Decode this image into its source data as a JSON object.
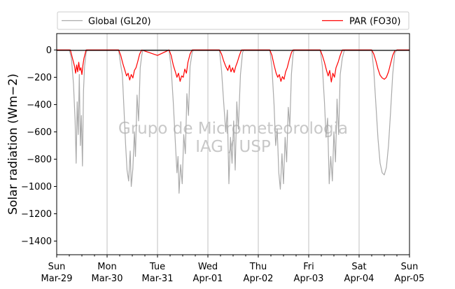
{
  "chart_data": {
    "type": "line",
    "title": "",
    "xlabel": "",
    "ylabel": "Solar radiation (Wm−2)",
    "ylim": [
      -1500,
      120
    ],
    "yticks": [
      0,
      -200,
      -400,
      -600,
      -800,
      -1000,
      -1200,
      -1400
    ],
    "xlim": [
      "2020-03-29",
      "2020-04-05"
    ],
    "xticks": [
      {
        "date": "2020-03-29",
        "day": "Sun",
        "label": "Mar-29"
      },
      {
        "date": "2020-03-30",
        "day": "Mon",
        "label": "Mar-30"
      },
      {
        "date": "2020-03-31",
        "day": "Tue",
        "label": "Mar-31"
      },
      {
        "date": "2020-04-01",
        "day": "Wed",
        "label": "Apr-01"
      },
      {
        "date": "2020-04-02",
        "day": "Thu",
        "label": "Apr-02"
      },
      {
        "date": "2020-04-03",
        "day": "Fri",
        "label": "Apr-03"
      },
      {
        "date": "2020-04-04",
        "day": "Sat",
        "label": "Apr-04"
      },
      {
        "date": "2020-04-05",
        "day": "Sun",
        "label": "Apr-05"
      }
    ],
    "grid": "vertical",
    "legend_position": "top",
    "watermark": [
      "Grupo de Micrometeorologia",
      "IAG / USP"
    ],
    "series": [
      {
        "name": "Global (GL20)",
        "color": "#aaaaaa",
        "points": [
          [
            "2020-03-29 00:00",
            0
          ],
          [
            "2020-03-29 06:00",
            0
          ],
          [
            "2020-03-29 07:00",
            -60
          ],
          [
            "2020-03-29 08:00",
            -250
          ],
          [
            "2020-03-29 08:45",
            -520
          ],
          [
            "2020-03-29 09:15",
            -830
          ],
          [
            "2020-03-29 09:45",
            -380
          ],
          [
            "2020-03-29 10:15",
            -620
          ],
          [
            "2020-03-29 10:45",
            -180
          ],
          [
            "2020-03-29 11:15",
            -700
          ],
          [
            "2020-03-29 11:45",
            -480
          ],
          [
            "2020-03-29 12:15",
            -850
          ],
          [
            "2020-03-29 12:45",
            -300
          ],
          [
            "2020-03-29 13:15",
            -120
          ],
          [
            "2020-03-29 14:00",
            -20
          ],
          [
            "2020-03-29 14:30",
            0
          ],
          [
            "2020-03-30 05:30",
            0
          ],
          [
            "2020-03-30 06:30",
            -110
          ],
          [
            "2020-03-30 07:15",
            -180
          ],
          [
            "2020-03-30 08:00",
            -420
          ],
          [
            "2020-03-30 08:45",
            -680
          ],
          [
            "2020-03-30 09:30",
            -880
          ],
          [
            "2020-03-30 10:15",
            -960
          ],
          [
            "2020-03-30 11:00",
            -740
          ],
          [
            "2020-03-30 11:30",
            -1000
          ],
          [
            "2020-03-30 12:15",
            -870
          ],
          [
            "2020-03-30 13:00",
            -600
          ],
          [
            "2020-03-30 13:30",
            -780
          ],
          [
            "2020-03-30 14:15",
            -330
          ],
          [
            "2020-03-30 15:00",
            -520
          ],
          [
            "2020-03-30 15:45",
            -130
          ],
          [
            "2020-03-30 16:30",
            -40
          ],
          [
            "2020-03-30 17:00",
            0
          ],
          [
            "2020-03-31 05:30",
            0
          ],
          [
            "2020-03-31 06:30",
            -130
          ],
          [
            "2020-03-31 07:30",
            -380
          ],
          [
            "2020-03-31 08:30",
            -680
          ],
          [
            "2020-03-31 09:15",
            -900
          ],
          [
            "2020-03-31 09:45",
            -780
          ],
          [
            "2020-03-31 10:15",
            -1050
          ],
          [
            "2020-03-31 11:00",
            -840
          ],
          [
            "2020-03-31 11:45",
            -980
          ],
          [
            "2020-03-31 12:30",
            -620
          ],
          [
            "2020-03-31 13:15",
            -760
          ],
          [
            "2020-03-31 14:00",
            -320
          ],
          [
            "2020-03-31 14:45",
            -480
          ],
          [
            "2020-03-31 15:30",
            -120
          ],
          [
            "2020-03-31 16:30",
            -20
          ],
          [
            "2020-03-31 17:00",
            0
          ],
          [
            "2020-04-01 05:30",
            0
          ],
          [
            "2020-04-01 06:30",
            -150
          ],
          [
            "2020-04-01 07:30",
            -380
          ],
          [
            "2020-04-01 08:30",
            -600
          ],
          [
            "2020-04-01 09:15",
            -440
          ],
          [
            "2020-04-01 10:00",
            -980
          ],
          [
            "2020-04-01 10:45",
            -640
          ],
          [
            "2020-04-01 11:30",
            -830
          ],
          [
            "2020-04-01 12:15",
            -520
          ],
          [
            "2020-04-01 13:00",
            -880
          ],
          [
            "2020-04-01 13:45",
            -380
          ],
          [
            "2020-04-01 14:30",
            -580
          ],
          [
            "2020-04-01 15:30",
            -180
          ],
          [
            "2020-04-01 16:30",
            -20
          ],
          [
            "2020-04-01 17:00",
            0
          ],
          [
            "2020-04-02 05:30",
            0
          ],
          [
            "2020-04-02 06:30",
            -130
          ],
          [
            "2020-04-02 07:30",
            -400
          ],
          [
            "2020-04-02 08:15",
            -700
          ],
          [
            "2020-04-02 09:00",
            -580
          ],
          [
            "2020-04-02 09:45",
            -900
          ],
          [
            "2020-04-02 10:30",
            -1020
          ],
          [
            "2020-04-02 11:15",
            -760
          ],
          [
            "2020-04-02 12:00",
            -980
          ],
          [
            "2020-04-02 12:45",
            -640
          ],
          [
            "2020-04-02 13:30",
            -820
          ],
          [
            "2020-04-02 14:15",
            -420
          ],
          [
            "2020-04-02 15:00",
            -560
          ],
          [
            "2020-04-02 15:45",
            -180
          ],
          [
            "2020-04-02 16:30",
            -40
          ],
          [
            "2020-04-02 17:00",
            0
          ],
          [
            "2020-04-03 05:30",
            0
          ],
          [
            "2020-04-03 06:30",
            -120
          ],
          [
            "2020-04-03 07:30",
            -380
          ],
          [
            "2020-04-03 08:15",
            -640
          ],
          [
            "2020-04-03 09:00",
            -500
          ],
          [
            "2020-04-03 09:45",
            -980
          ],
          [
            "2020-04-03 10:30",
            -780
          ],
          [
            "2020-04-03 11:15",
            -960
          ],
          [
            "2020-04-03 12:00",
            -600
          ],
          [
            "2020-04-03 12:45",
            -820
          ],
          [
            "2020-04-03 13:30",
            -360
          ],
          [
            "2020-04-03 14:15",
            -620
          ],
          [
            "2020-04-03 15:00",
            -180
          ],
          [
            "2020-04-03 16:00",
            -60
          ],
          [
            "2020-04-03 17:00",
            0
          ],
          [
            "2020-04-04 06:00",
            0
          ],
          [
            "2020-04-04 07:00",
            -150
          ],
          [
            "2020-04-04 08:00",
            -400
          ],
          [
            "2020-04-04 09:00",
            -650
          ],
          [
            "2020-04-04 10:00",
            -830
          ],
          [
            "2020-04-04 11:00",
            -900
          ],
          [
            "2020-04-04 12:00",
            -915
          ],
          [
            "2020-04-04 13:00",
            -860
          ],
          [
            "2020-04-04 14:00",
            -700
          ],
          [
            "2020-04-04 15:00",
            -450
          ],
          [
            "2020-04-04 16:00",
            -180
          ],
          [
            "2020-04-04 17:00",
            -20
          ],
          [
            "2020-04-04 18:00",
            0
          ],
          [
            "2020-04-05 00:00",
            0
          ]
        ]
      },
      {
        "name": "PAR (FO30)",
        "color": "#ff0000",
        "points": [
          [
            "2020-03-29 00:00",
            0
          ],
          [
            "2020-03-29 06:30",
            0
          ],
          [
            "2020-03-29 07:30",
            -60
          ],
          [
            "2020-03-29 08:30",
            -120
          ],
          [
            "2020-03-29 09:00",
            -170
          ],
          [
            "2020-03-29 09:30",
            -110
          ],
          [
            "2020-03-29 10:00",
            -160
          ],
          [
            "2020-03-29 10:30",
            -90
          ],
          [
            "2020-03-29 11:00",
            -150
          ],
          [
            "2020-03-29 11:30",
            -130
          ],
          [
            "2020-03-29 12:00",
            -180
          ],
          [
            "2020-03-29 12:30",
            -110
          ],
          [
            "2020-03-29 13:00",
            -60
          ],
          [
            "2020-03-29 14:00",
            0
          ],
          [
            "2020-03-30 05:30",
            0
          ],
          [
            "2020-03-30 06:30",
            -40
          ],
          [
            "2020-03-30 07:30",
            -100
          ],
          [
            "2020-03-30 08:30",
            -150
          ],
          [
            "2020-03-30 09:15",
            -190
          ],
          [
            "2020-03-30 10:00",
            -170
          ],
          [
            "2020-03-30 10:45",
            -220
          ],
          [
            "2020-03-30 11:30",
            -180
          ],
          [
            "2020-03-30 12:15",
            -205
          ],
          [
            "2020-03-30 13:00",
            -150
          ],
          [
            "2020-03-30 13:45",
            -130
          ],
          [
            "2020-03-30 14:30",
            -90
          ],
          [
            "2020-03-30 15:30",
            -30
          ],
          [
            "2020-03-30 16:30",
            0
          ],
          [
            "2020-03-31 00:00",
            -40
          ],
          [
            "2020-03-31 05:30",
            0
          ],
          [
            "2020-03-31 06:30",
            -40
          ],
          [
            "2020-03-31 07:30",
            -110
          ],
          [
            "2020-03-31 08:30",
            -160
          ],
          [
            "2020-03-31 09:15",
            -200
          ],
          [
            "2020-03-31 10:00",
            -170
          ],
          [
            "2020-03-31 10:45",
            -230
          ],
          [
            "2020-03-31 11:30",
            -190
          ],
          [
            "2020-03-31 12:15",
            -200
          ],
          [
            "2020-03-31 13:00",
            -140
          ],
          [
            "2020-03-31 13:45",
            -170
          ],
          [
            "2020-03-31 14:30",
            -90
          ],
          [
            "2020-03-31 15:30",
            -30
          ],
          [
            "2020-03-31 16:30",
            0
          ],
          [
            "2020-04-01 05:30",
            0
          ],
          [
            "2020-04-01 06:30",
            -30
          ],
          [
            "2020-04-01 07:30",
            -80
          ],
          [
            "2020-04-01 08:30",
            -120
          ],
          [
            "2020-04-01 09:30",
            -150
          ],
          [
            "2020-04-01 10:15",
            -110
          ],
          [
            "2020-04-01 11:00",
            -160
          ],
          [
            "2020-04-01 11:45",
            -130
          ],
          [
            "2020-04-01 12:30",
            -165
          ],
          [
            "2020-04-01 13:15",
            -120
          ],
          [
            "2020-04-01 14:00",
            -90
          ],
          [
            "2020-04-01 15:00",
            -40
          ],
          [
            "2020-04-01 16:00",
            0
          ],
          [
            "2020-04-02 05:30",
            0
          ],
          [
            "2020-04-02 06:30",
            -40
          ],
          [
            "2020-04-02 07:30",
            -110
          ],
          [
            "2020-04-02 08:30",
            -170
          ],
          [
            "2020-04-02 09:15",
            -200
          ],
          [
            "2020-04-02 10:00",
            -180
          ],
          [
            "2020-04-02 10:45",
            -230
          ],
          [
            "2020-04-02 11:30",
            -195
          ],
          [
            "2020-04-02 12:15",
            -215
          ],
          [
            "2020-04-02 13:00",
            -160
          ],
          [
            "2020-04-02 13:45",
            -130
          ],
          [
            "2020-04-02 14:45",
            -70
          ],
          [
            "2020-04-02 15:45",
            -20
          ],
          [
            "2020-04-02 16:30",
            0
          ],
          [
            "2020-04-03 05:30",
            0
          ],
          [
            "2020-04-03 06:30",
            -40
          ],
          [
            "2020-04-03 07:30",
            -90
          ],
          [
            "2020-04-03 08:30",
            -150
          ],
          [
            "2020-04-03 09:15",
            -190
          ],
          [
            "2020-04-03 10:00",
            -150
          ],
          [
            "2020-04-03 10:45",
            -235
          ],
          [
            "2020-04-03 11:30",
            -170
          ],
          [
            "2020-04-03 12:15",
            -200
          ],
          [
            "2020-04-03 13:00",
            -130
          ],
          [
            "2020-04-03 14:00",
            -90
          ],
          [
            "2020-04-03 15:00",
            -40
          ],
          [
            "2020-04-03 16:00",
            0
          ],
          [
            "2020-04-04 06:00",
            0
          ],
          [
            "2020-04-04 07:00",
            -30
          ],
          [
            "2020-04-04 08:00",
            -80
          ],
          [
            "2020-04-04 09:00",
            -140
          ],
          [
            "2020-04-04 10:00",
            -185
          ],
          [
            "2020-04-04 11:00",
            -205
          ],
          [
            "2020-04-04 12:00",
            -215
          ],
          [
            "2020-04-04 13:00",
            -200
          ],
          [
            "2020-04-04 14:00",
            -160
          ],
          [
            "2020-04-04 15:00",
            -100
          ],
          [
            "2020-04-04 16:00",
            -40
          ],
          [
            "2020-04-04 17:00",
            -5
          ],
          [
            "2020-04-04 18:00",
            0
          ],
          [
            "2020-04-05 00:00",
            0
          ]
        ]
      }
    ]
  }
}
